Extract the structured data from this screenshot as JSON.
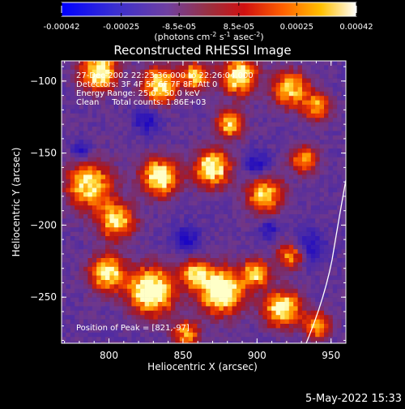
{
  "colorbar": {
    "tick_labels": [
      "-0.00042",
      "-0.00025",
      "-8.5e-05",
      "8.5e-05",
      "0.00025",
      "0.00042"
    ],
    "tick_values": [
      -0.00042,
      -0.00025,
      -8.5e-05,
      8.5e-05,
      0.00025,
      0.00042
    ],
    "range": [
      -0.00042,
      0.00042
    ],
    "unit_main": "(photons cm",
    "unit_sup1": "-2",
    "unit_mid1": " s",
    "unit_sup2": "-1",
    "unit_mid2": " asec",
    "unit_sup3": "-2",
    "unit_end": ")"
  },
  "image": {
    "title": "Reconstructed RHESSI Image",
    "annotation_lines": [
      "27-Dec-2002 22:23:36.000 to 22:26:04.000",
      "Detectors: 3F 4F 5F 6F 7F 8F, Att 0",
      "Energy Range: 25.0 - 50.0 keV",
      "Clean     Total counts: 1.86E+03"
    ],
    "peak_label": "Position of Peak = [821,-97]",
    "x_axis": {
      "label": "Heliocentric X (arcsec)",
      "range": [
        768,
        960
      ],
      "ticks": [
        800,
        850,
        900,
        950
      ],
      "tick_labels": [
        "800",
        "850",
        "900",
        "950"
      ]
    },
    "y_axis": {
      "label": "Heliocentric Y (arcsec)",
      "range": [
        -282,
        -86
      ],
      "ticks": [
        -100,
        -150,
        -200,
        -250
      ],
      "tick_labels": [
        "−100",
        "−150",
        "−200",
        "−250"
      ]
    },
    "limb_curve": {
      "description_color": "#ffffff"
    },
    "colors": {
      "low": "#0000ff",
      "mid_low": "#6040a0",
      "mid": "#a03030",
      "high": "#ff6000",
      "max": "#ffff80"
    }
  },
  "footer": {
    "timestamp": "5-May-2022 15:33"
  }
}
